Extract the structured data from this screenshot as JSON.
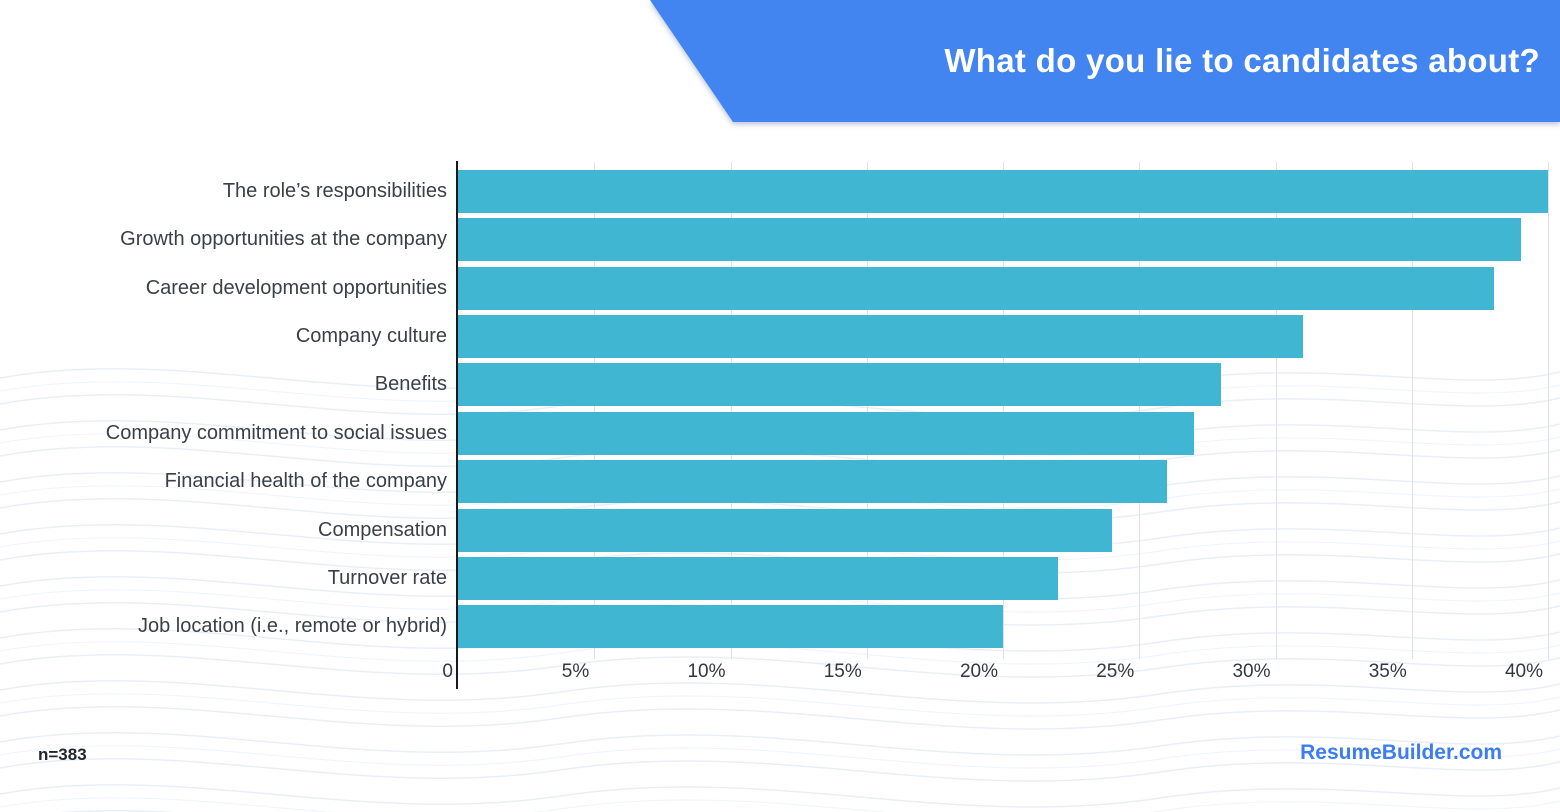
{
  "banner": {
    "title": "What do you lie to candidates about?",
    "bg_color": "#4285f1"
  },
  "chart_data": {
    "type": "bar",
    "orientation": "horizontal",
    "title": "What do you lie to candidates about?",
    "categories": [
      "The role’s responsibilities",
      "Growth opportunities at the company",
      "Career development opportunities",
      "Company culture",
      "Benefits",
      "Company commitment to social issues",
      "Financial health of the company",
      "Compensation",
      "Turnover rate",
      "Job location (i.e., remote or hybrid)"
    ],
    "values": [
      40,
      39,
      38,
      31,
      28,
      27,
      26,
      24,
      22,
      20
    ],
    "unit": "%",
    "xlabel": "",
    "ylabel": "",
    "x_axis": {
      "min": 0,
      "max": 40,
      "ticks": [
        "0",
        "5%",
        "10%",
        "15%",
        "20%",
        "25%",
        "30%",
        "35%",
        "40%"
      ],
      "grid": true
    },
    "legend": "none",
    "bar_color": "#41b6d3",
    "gridline_color": "#dce2ea"
  },
  "footer": {
    "sample_size": "n=383",
    "brand": "ResumeBuilder.com",
    "brand_color": "#3b7df2"
  }
}
